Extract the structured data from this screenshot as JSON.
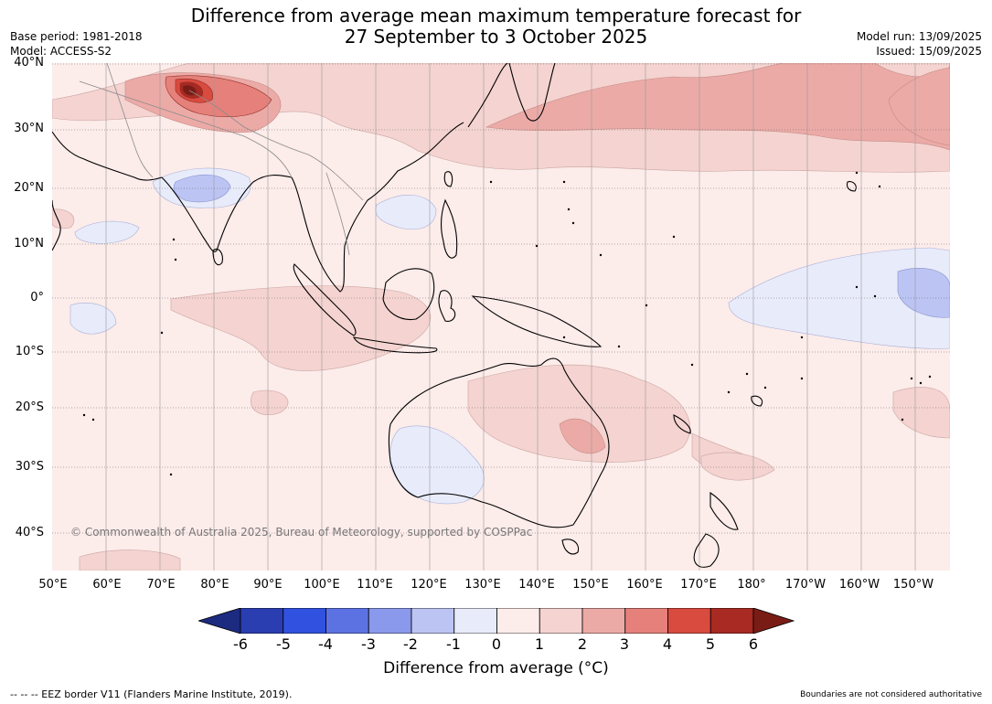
{
  "header": {
    "title_line1": "Difference from average mean maximum temperature forecast for",
    "title_line2": "27 September to 3 October 2025",
    "base_period": "Base period: 1981-2018",
    "model": "Model: ACCESS-S2",
    "model_run": "Model run: 13/09/2025",
    "issued": "Issued: 15/09/2025"
  },
  "map": {
    "lat_labels": [
      "40°N",
      "30°N",
      "20°N",
      "10°N",
      "0°",
      "10°S",
      "20°S",
      "30°S",
      "40°S"
    ],
    "lon_labels": [
      "50°E",
      "60°E",
      "70°E",
      "80°E",
      "90°E",
      "100°E",
      "110°E",
      "120°E",
      "130°E",
      "140°E",
      "150°E",
      "160°E",
      "170°E",
      "180°",
      "170°W",
      "160°W",
      "150°W"
    ],
    "copyright": "© Commonwealth of Australia 2025, Bureau of Meteorology, supported by COSPPac",
    "background_color": "#fcecea"
  },
  "colorbar": {
    "ticks": [
      "-6",
      "-5",
      "-4",
      "-3",
      "-2",
      "-1",
      "0",
      "1",
      "2",
      "3",
      "4",
      "5",
      "6"
    ],
    "colors": [
      "#1c2a80",
      "#2a3eb1",
      "#3151e0",
      "#5c72e3",
      "#8a99ec",
      "#bcc4f4",
      "#e8ebfa",
      "#fcecea",
      "#f4d3d0",
      "#ecaaa6",
      "#e5807a",
      "#d94a3f",
      "#a82a22",
      "#7a1c16"
    ],
    "label": "Difference from average (°C)"
  },
  "footer": {
    "left": "--  --  -- EEZ border V11 (Flanders Marine Institute, 2019).",
    "right": "Boundaries are not considered authoritative"
  }
}
